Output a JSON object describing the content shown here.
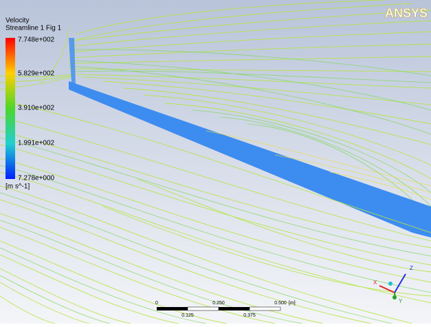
{
  "viewport": {
    "title": "Velocity",
    "subtitle": "Streamline 1 Fig 1",
    "legend": {
      "labels": [
        "7.748e+002",
        "5.829e+002",
        "3.910e+002",
        "1.991e+002",
        "7.278e+000"
      ],
      "unit": "[m s^-1]"
    },
    "logo": "ANSYS",
    "scale_bar": {
      "top_labels": [
        "0",
        "0.250",
        "0.500"
      ],
      "unit": "[m]",
      "bottom_labels": [
        "0.125",
        "0.375"
      ]
    },
    "axes": {
      "x": "X",
      "y": "Y",
      "z": "Z"
    }
  }
}
